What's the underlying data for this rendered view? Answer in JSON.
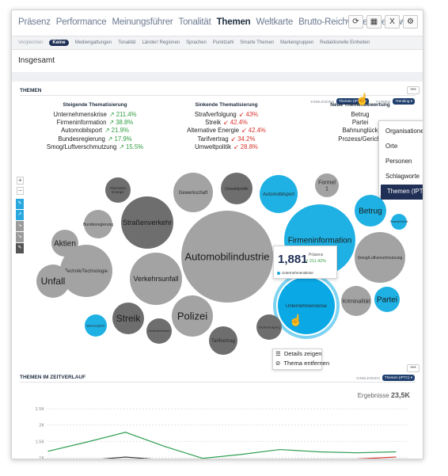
{
  "nav": {
    "items": [
      {
        "label": "Präsenz",
        "active": false
      },
      {
        "label": "Performance",
        "active": false
      },
      {
        "label": "Meinungsführer",
        "active": false
      },
      {
        "label": "Tonalität",
        "active": false
      },
      {
        "label": "Themen",
        "active": true
      },
      {
        "label": "Weltkarte",
        "active": false
      },
      {
        "label": "Brutto-Reichweite",
        "active": false
      },
      {
        "label": "Werbewert",
        "active": false
      }
    ],
    "icons": [
      "refresh-icon",
      "grid-icon",
      "excel-icon",
      "settings-icon"
    ],
    "icon_glyphs": [
      "⟳",
      "▦",
      "X",
      "⚙"
    ]
  },
  "subnav": {
    "vergleich": "Vergleichen",
    "keine": "Keine",
    "items": [
      "Mediengattungen",
      "Tonalität",
      "Länder/ Regionen",
      "Sprachen",
      "Punktzahl",
      "Smarte Themen",
      "Markengruppen",
      "Redaktionelle Einheiten"
    ]
  },
  "page_title": "Insgesamt",
  "themen": {
    "title": "THEMEN",
    "einblenden_label": "EINBLENDEN",
    "einblenden_value": "Themen (IPTC) ▾",
    "farben_label": "FARBEN",
    "farben_value": "Trending ▾",
    "more": "•••",
    "columns": {
      "steigende": {
        "heading": "Steigende Thematisierung",
        "rows": [
          {
            "name": "Unternehmenskrise",
            "value": "↗ 211.4%"
          },
          {
            "name": "Firmeninformation",
            "value": "↗ 38.8%"
          },
          {
            "name": "Automobilsport",
            "value": "↗ 21.9%"
          },
          {
            "name": "Bundesregierung",
            "value": "↗ 17.9%"
          },
          {
            "name": "Smog/Luftverschmutzung",
            "value": "↗ 15.5%"
          }
        ]
      },
      "sinkende": {
        "heading": "Sinkende Thematisierung",
        "rows": [
          {
            "name": "Strafverfolgung",
            "value": "↙ 43%"
          },
          {
            "name": "Streik",
            "value": "↙ 42.4%"
          },
          {
            "name": "Alternative Energie",
            "value": "↙ 42.4%"
          },
          {
            "name": "Tarifvertrag",
            "value": "↙ 34.2%"
          },
          {
            "name": "Umweltpolitik",
            "value": "↙ 28.8%"
          }
        ]
      },
      "neue": {
        "heading": "Neue Themenbewertung",
        "rows": [
          "Betrug",
          "Partei",
          "Bahnunglück",
          "Prozess/Gericht"
        ]
      }
    },
    "zoom_in": "+",
    "zoom_out": "−",
    "tool_colors": [
      "#29a8df",
      "#29a8df",
      "#9b9b9b",
      "#9b9b9b",
      "#555555"
    ],
    "tool_glyphs": [
      "✎",
      "↗",
      "↘",
      "↘",
      "✎"
    ]
  },
  "dropdown": {
    "items": [
      "Organisationen",
      "Orte",
      "Personen",
      "Schlagworte",
      "Themen (IPTC)"
    ],
    "selected": 4
  },
  "bubbles": [
    {
      "label": "Automobilindustrie",
      "size": "huge",
      "color": "#a3a3a3",
      "font": 13
    },
    {
      "label": "Firmeninformation",
      "size": "large",
      "color": "#1fb1e3",
      "font": 10
    },
    {
      "label": "Unternehmenskrise",
      "size": "large",
      "color": "#0aa9e6",
      "font": 6
    },
    {
      "label": "Straßenverkehr",
      "size": "large",
      "color": "#6e6e6e",
      "font": 9
    },
    {
      "label": "Verkehrsunfall",
      "size": "large",
      "color": "#a3a3a3",
      "font": 9
    },
    {
      "label": "Technik/Technologie",
      "size": "large",
      "color": "#a3a3a3",
      "font": 6
    },
    {
      "label": "Smog/Luftverschmutzung",
      "size": "medium",
      "color": "#a3a3a3",
      "font": 5
    },
    {
      "label": "Polizei",
      "size": "medium",
      "color": "#a3a3a3",
      "font": 13
    },
    {
      "label": "Unfall",
      "size": "medium",
      "color": "#a3a3a3",
      "font": 12
    },
    {
      "label": "Gewerkschaft",
      "size": "medium",
      "color": "#a3a3a3",
      "font": 6
    },
    {
      "label": "Automobilsport",
      "size": "medium",
      "color": "#1fb1e3",
      "font": 6
    },
    {
      "label": "Umweltpolitik",
      "size": "small",
      "color": "#6e6e6e",
      "font": 5
    },
    {
      "label": "Bundesregierung",
      "size": "medium",
      "color": "#a3a3a3",
      "font": 5
    },
    {
      "label": "Streik",
      "size": "medium",
      "color": "#6e6e6e",
      "font": 12
    },
    {
      "label": "Betrug",
      "size": "medium",
      "color": "#1fb1e3",
      "font": 10
    },
    {
      "label": "Aktien",
      "size": "small",
      "color": "#a3a3a3",
      "font": 10
    },
    {
      "label": "Kriminalität",
      "size": "small",
      "color": "#a3a3a3",
      "font": 7
    },
    {
      "label": "Partei",
      "size": "small",
      "color": "#1fb1e3",
      "font": 10
    },
    {
      "label": "Tarifvertrag",
      "size": "small",
      "color": "#6e6e6e",
      "font": 6
    },
    {
      "label": "Formel 1",
      "size": "small",
      "color": "#a3a3a3",
      "font": 7
    },
    {
      "label": "Alternative Energie",
      "size": "small",
      "color": "#6e6e6e",
      "font": 4.5
    },
    {
      "label": "Strafverfolgung",
      "size": "small",
      "color": "#6e6e6e",
      "font": 4
    },
    {
      "label": "Bahnunglück",
      "size": "tiny",
      "color": "#1fb1e3",
      "font": 4
    },
    {
      "label": "Prozess/Gericht",
      "size": "tiny",
      "color": "#1fb1e3",
      "font": 3.2
    },
    {
      "label": "Geldstrafen/Strafen",
      "size": "tiny",
      "color": "#6e6e6e",
      "font": 3.2
    }
  ],
  "tooltip": {
    "value": "1,881",
    "label": "Präsenz",
    "pct": "↗ 211.42%",
    "topic": "Unternehmenskrise"
  },
  "context_menu": {
    "items": [
      {
        "icon": "☰",
        "label": "Details zeigen"
      },
      {
        "icon": "⊘",
        "label": "Thema entfernen"
      }
    ]
  },
  "zeitverlauf": {
    "title": "THEMEN IM ZEITVERLAUF",
    "einblenden_label": "EINBLENDEN",
    "einblenden_value": "Themen (IPTC) ▾",
    "more": "•••",
    "ergebnisse_label": "Ergebnisse",
    "ergebnisse_value": "23,5K"
  },
  "chart_data": {
    "type": "line",
    "y_ticks": [
      "2.5K",
      "2K",
      "1.5K",
      "1K"
    ],
    "y_tick_values": [
      2500,
      2000,
      1500,
      1000
    ],
    "ylim": [
      900,
      2600
    ],
    "x": [
      0,
      1,
      2,
      3,
      4,
      5,
      6,
      7,
      8,
      9
    ],
    "series": [
      {
        "color": "#2e9d52",
        "values": [
          1200,
          1480,
          1780,
          1350,
          980,
          1100,
          1250,
          1180,
          1150,
          1180
        ]
      },
      {
        "color": "#333333",
        "values": [
          920,
          920,
          1020,
          930,
          910,
          null,
          null,
          null,
          null,
          null
        ]
      },
      {
        "color": "#d6342c",
        "values": [
          null,
          null,
          null,
          null,
          null,
          null,
          null,
          null,
          960,
          1020
        ]
      }
    ]
  }
}
